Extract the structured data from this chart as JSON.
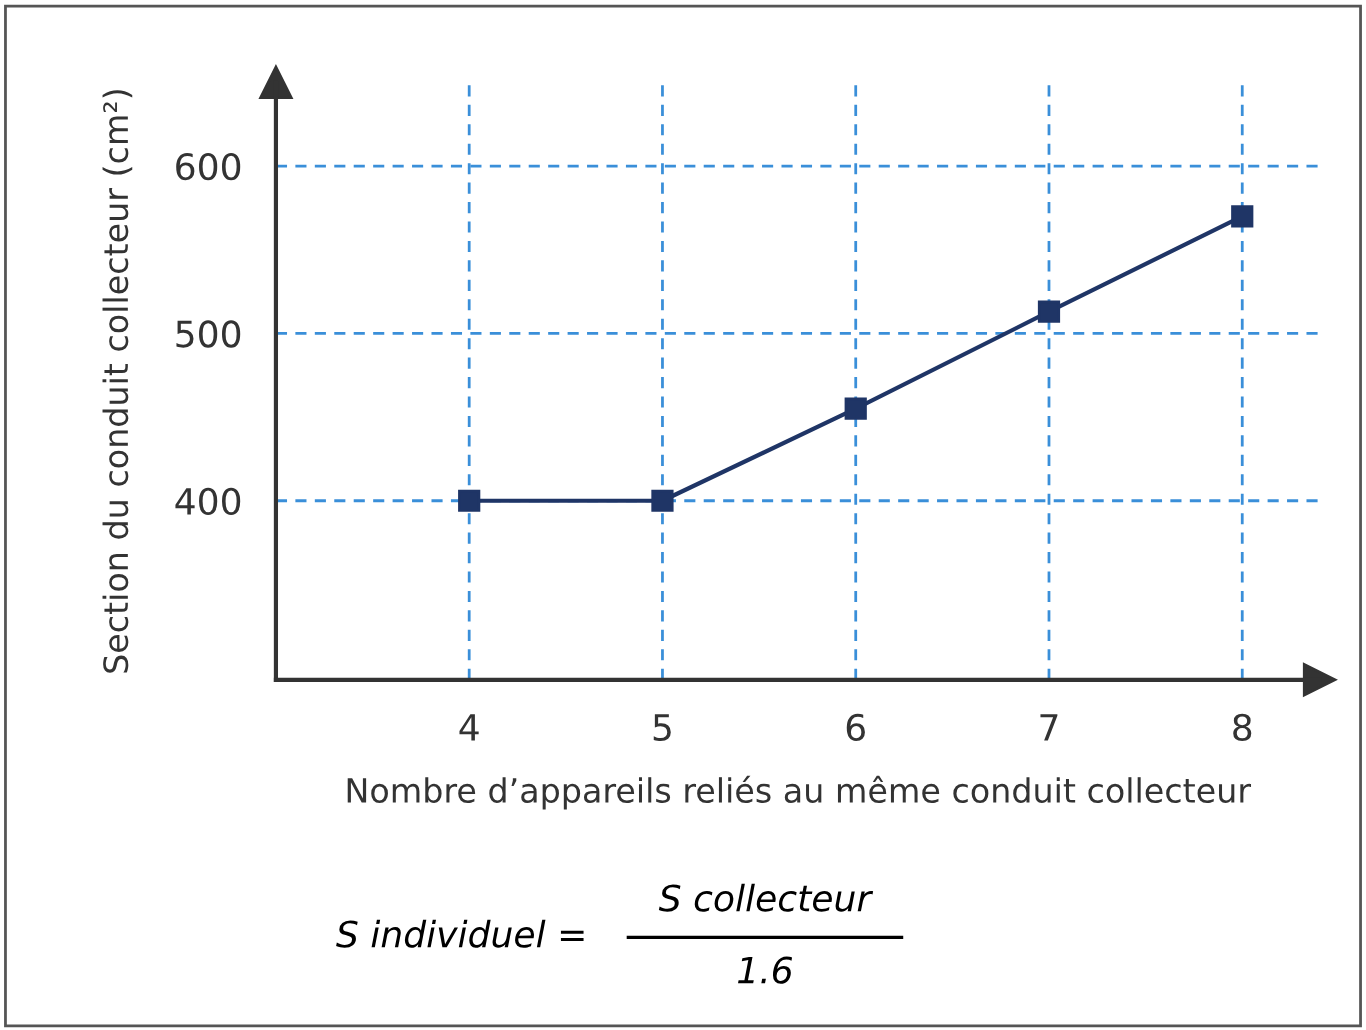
{
  "chart_data": {
    "type": "line",
    "xlabel": "Nombre d’appareils reliés au même conduit collecteur",
    "ylabel": "Section du conduit collecteur (cm²)",
    "x": [
      4,
      5,
      6,
      7,
      8
    ],
    "series": [
      {
        "color": "#1f3566",
        "values": [
          400,
          400,
          455,
          513,
          570
        ]
      }
    ],
    "xlim": [
      3,
      8.4
    ],
    "ylim": [
      293,
      650
    ],
    "xticks": [
      4,
      5,
      6,
      7,
      8
    ],
    "yticks": [
      400,
      500,
      600
    ],
    "grid": true,
    "marker": "square",
    "line_style": "solid",
    "legend": false,
    "annotations": [
      "S individuel =",
      "S collecteur",
      "1.6"
    ]
  }
}
